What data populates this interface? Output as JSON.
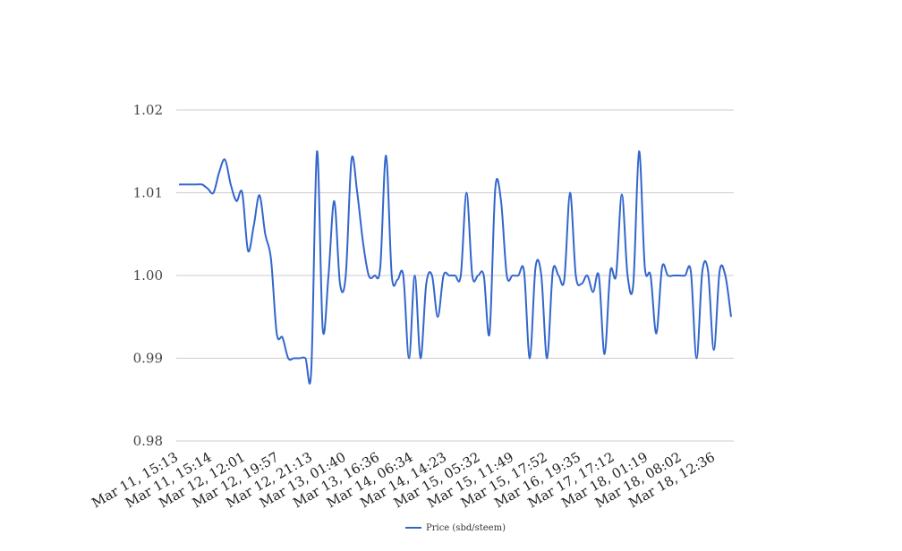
{
  "chart_data": {
    "type": "line",
    "title": "",
    "xlabel": "",
    "ylabel": "",
    "ylim": [
      0.98,
      1.02
    ],
    "y_ticks": [
      "0.98",
      "0.99",
      "1.00",
      "1.01",
      "1.02"
    ],
    "x_tick_labels": [
      "Mar 11, 15:13",
      "Mar 11, 15:14",
      "Mar 12, 12:01",
      "Mar 12, 19:57",
      "Mar 12, 21:13",
      "Mar 13, 01:40",
      "Mar 13, 16:36",
      "Mar 14, 06:34",
      "Mar 14, 14:23",
      "Mar 15, 05:32",
      "Mar 15, 11:49",
      "Mar 15, 17:52",
      "Mar 16, 19:35",
      "Mar 17, 17:12",
      "Mar 18, 01:19",
      "Mar 18, 08:02",
      "Mar 18, 12:36"
    ],
    "grid": true,
    "legend_position": "bottom-center",
    "series": [
      {
        "name": "Price (sbd/steem)",
        "color": "#3366cc",
        "values": [
          1.011,
          1.011,
          1.011,
          1.011,
          1.011,
          1.0105,
          1.01,
          1.0125,
          1.014,
          1.011,
          1.009,
          1.01,
          1.003,
          1.006,
          1.0097,
          1.005,
          1.002,
          0.993,
          0.9925,
          0.99,
          0.99,
          0.99,
          0.99,
          0.9885,
          1.015,
          0.9935,
          1.0,
          1.009,
          0.999,
          1.0,
          1.014,
          1.01,
          1.004,
          1.0,
          1.0,
          1.001,
          1.0145,
          1.0,
          0.9995,
          1.0,
          0.99,
          1.0,
          0.99,
          0.999,
          1.0,
          0.995,
          1.0,
          1.0,
          1.0,
          1.0,
          1.01,
          1.0,
          1.0,
          1.0,
          0.993,
          1.0105,
          1.009,
          1.0,
          1.0,
          1.0,
          1.0005,
          0.99,
          1.001,
          1.0,
          0.99,
          1.0005,
          1.0,
          0.9995,
          1.01,
          1.0,
          0.999,
          1.0,
          0.998,
          1.0,
          0.9905,
          1.0005,
          1.0,
          1.0098,
          1.0,
          0.999,
          1.015,
          1.001,
          1.0,
          0.993,
          1.001,
          1.0,
          1.0,
          1.0,
          1.0,
          1.0005,
          0.99,
          1.0005,
          1.0005,
          0.991,
          1.0005,
          1.0,
          0.995
        ]
      }
    ]
  }
}
